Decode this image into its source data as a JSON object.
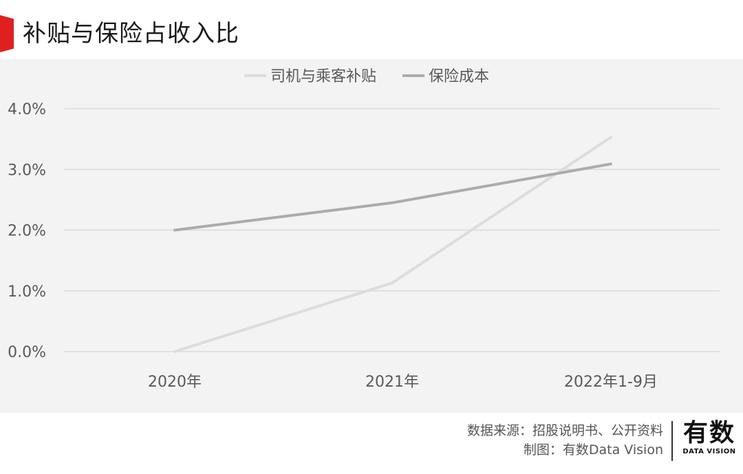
{
  "header": {
    "title": "补贴与保险占收入比"
  },
  "chart_data": {
    "type": "line",
    "categories": [
      "2020年",
      "2021年",
      "2022年1-9月"
    ],
    "series": [
      {
        "name": "司机与乘客补贴",
        "values": [
          0.0,
          1.13,
          3.53
        ],
        "color": "#dcdcdc"
      },
      {
        "name": "保险成本",
        "values": [
          2.0,
          2.45,
          3.09
        ],
        "color": "#ababab"
      }
    ],
    "y_ticks": [
      "0.0%",
      "1.0%",
      "2.0%",
      "3.0%",
      "4.0%"
    ],
    "ylim": [
      0,
      4
    ],
    "grid": true,
    "legend": "top-center"
  },
  "footer": {
    "source": "数据来源：招股说明书、公开资料",
    "credit": "制图：有数Data Vision"
  },
  "logo": {
    "main": "有数",
    "sub": "DATA VISION"
  }
}
